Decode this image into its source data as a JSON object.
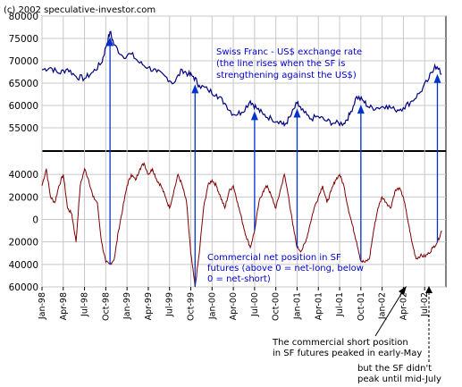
{
  "copyright": "(c) 2002 speculative-investor.com",
  "colors": {
    "top_series": "#000080",
    "bottom_series": "#800000",
    "arrow": "#0033cc",
    "grid": "#c8c8c8",
    "background": "#ffffff"
  },
  "chart_data": [
    {
      "type": "line",
      "panel": "top",
      "title": "",
      "annotation_lines": [
        "Swiss Franc - US$ exchange rate",
        "(the line rises when the SF is",
        "strengthening against the US$)"
      ],
      "ylim": [
        50000,
        80000
      ],
      "ytick_labels": [
        "80000",
        "75000",
        "70000",
        "65000",
        "60000",
        "55000"
      ],
      "yticks": [
        80000,
        75000,
        70000,
        65000,
        60000,
        55000
      ],
      "grid": true,
      "series": [
        {
          "x": [
            1998.0,
            1998.1,
            1998.2,
            1998.3,
            1998.4,
            1998.5,
            1998.6,
            1998.7,
            1998.75,
            1998.8,
            1998.85,
            1998.95,
            1999.05,
            1999.15,
            1999.25,
            1999.35,
            1999.45,
            1999.55,
            1999.65,
            1999.72,
            1999.78,
            1999.85,
            1999.95,
            2000.05,
            2000.15,
            2000.25,
            2000.35,
            2000.45,
            2000.52,
            2000.6,
            2000.7,
            2000.8,
            2000.85,
            2000.92,
            2001.0,
            2001.05,
            2001.15,
            2001.25,
            2001.35,
            2001.45,
            2001.55,
            2001.62,
            2001.7,
            2001.78,
            2001.85,
            2001.95,
            2002.05,
            2002.15,
            2002.25,
            2002.35,
            2002.45,
            2002.55,
            2002.62,
            2002.7
          ],
          "values": [
            68000,
            68500,
            67200,
            68200,
            66500,
            66000,
            67500,
            69500,
            73000,
            76500,
            73500,
            71000,
            71500,
            69500,
            68500,
            67500,
            66500,
            65000,
            68000,
            67000,
            66500,
            64500,
            63500,
            62500,
            60500,
            58000,
            58500,
            61000,
            59500,
            58000,
            57000,
            56500,
            55500,
            57500,
            60500,
            59000,
            57000,
            57500,
            56500,
            56000,
            56000,
            58000,
            62000,
            61000,
            59500,
            59500,
            60000,
            59000,
            59500,
            61000,
            63000,
            66000,
            69000,
            67000
          ]
        }
      ]
    },
    {
      "type": "line",
      "panel": "bottom",
      "annotation_lines": [
        "Commercial net position in SF",
        "futures (above 0 = net-long, below",
        "0 = net-short)"
      ],
      "ylim": [
        -60000,
        60000
      ],
      "ytick_labels": [
        "40000",
        "20000",
        "0",
        "20000",
        "40000",
        "60000"
      ],
      "yticks": [
        40000,
        20000,
        0,
        -20000,
        -40000,
        -60000
      ],
      "grid": true,
      "series": [
        {
          "x": [
            1998.0,
            1998.05,
            1998.1,
            1998.15,
            1998.2,
            1998.25,
            1998.3,
            1998.35,
            1998.4,
            1998.45,
            1998.5,
            1998.55,
            1998.6,
            1998.65,
            1998.7,
            1998.75,
            1998.8,
            1998.85,
            1998.9,
            1998.95,
            1999.0,
            1999.05,
            1999.1,
            1999.15,
            1999.2,
            1999.25,
            1999.3,
            1999.35,
            1999.4,
            1999.45,
            1999.5,
            1999.55,
            1999.6,
            1999.65,
            1999.7,
            1999.75,
            1999.8,
            1999.85,
            1999.9,
            1999.95,
            2000.0,
            2000.05,
            2000.1,
            2000.15,
            2000.2,
            2000.25,
            2000.3,
            2000.35,
            2000.4,
            2000.45,
            2000.5,
            2000.55,
            2000.6,
            2000.65,
            2000.7,
            2000.75,
            2000.8,
            2000.85,
            2000.9,
            2000.95,
            2001.0,
            2001.05,
            2001.1,
            2001.15,
            2001.2,
            2001.25,
            2001.3,
            2001.35,
            2001.4,
            2001.45,
            2001.5,
            2001.55,
            2001.6,
            2001.65,
            2001.7,
            2001.75,
            2001.8,
            2001.85,
            2001.9,
            2001.95,
            2002.0,
            2002.05,
            2002.1,
            2002.15,
            2002.2,
            2002.25,
            2002.3,
            2002.35,
            2002.4,
            2002.45,
            2002.5,
            2002.55,
            2002.6,
            2002.65,
            2002.7
          ],
          "values": [
            30000,
            45000,
            20000,
            15000,
            30000,
            40000,
            10000,
            5000,
            -20000,
            30000,
            45000,
            35000,
            20000,
            15000,
            -20000,
            -38000,
            -40000,
            -35000,
            -10000,
            10000,
            30000,
            40000,
            35000,
            45000,
            50000,
            40000,
            45000,
            35000,
            30000,
            20000,
            10000,
            25000,
            40000,
            30000,
            15000,
            -30000,
            -60000,
            -30000,
            10000,
            30000,
            35000,
            30000,
            20000,
            10000,
            25000,
            30000,
            15000,
            0,
            -15000,
            -25000,
            -10000,
            15000,
            25000,
            30000,
            20000,
            10000,
            25000,
            40000,
            20000,
            -5000,
            -25000,
            -28000,
            -20000,
            -5000,
            10000,
            20000,
            30000,
            15000,
            25000,
            35000,
            40000,
            30000,
            10000,
            -5000,
            -20000,
            -37000,
            -38000,
            -35000,
            -10000,
            10000,
            20000,
            15000,
            10000,
            25000,
            28000,
            20000,
            0,
            -20000,
            -35000,
            -32000,
            -33000,
            -30000,
            -25000,
            -20000,
            -10000
          ]
        }
      ]
    }
  ],
  "x_axis": {
    "xlim": [
      1998.0,
      2002.75
    ],
    "tick_labels": [
      "Jan-98",
      "Apr-98",
      "Jul-98",
      "Oct-98",
      "Jan-99",
      "Apr-99",
      "Jul-99",
      "Oct-99",
      "Jan-00",
      "Apr-00",
      "Jul-00",
      "Oct-00",
      "Jan-01",
      "Apr-01",
      "Jul-01",
      "Oct-01",
      "Jan-02",
      "Apr-02",
      "Jul-02"
    ],
    "tick_values": [
      1998.0,
      1998.25,
      1998.5,
      1998.75,
      1999.0,
      1999.25,
      1999.5,
      1999.75,
      2000.0,
      2000.25,
      2000.5,
      2000.75,
      2001.0,
      2001.25,
      2001.5,
      2001.75,
      2002.0,
      2002.25,
      2002.5
    ]
  },
  "arrows_at_x": [
    1998.8,
    1999.8,
    2000.5,
    2001.0,
    2001.75,
    2002.65
  ],
  "notes": [
    {
      "lines": [
        "The commercial short position",
        "in SF futures peaked in early-May"
      ]
    },
    {
      "lines": [
        "but the SF didn't",
        "peak until mid-July"
      ]
    }
  ]
}
